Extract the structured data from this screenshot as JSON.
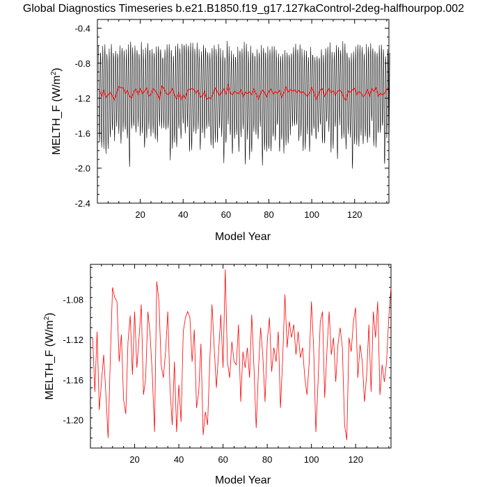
{
  "figure": {
    "title": "Global Diagnostics Timeseries b.e21.B1850.f19_g17.127kaControl-2deg-halfhourpop.002"
  },
  "chart_data": [
    {
      "type": "line",
      "xlabel": "Model Year",
      "ylabel": "MELTH_F (W/m",
      "ylabel_sup": "2",
      "ylabel_tail": ")",
      "xlim": [
        0,
        136
      ],
      "ylim": [
        -2.4,
        -0.3
      ],
      "xticks": [
        20,
        40,
        60,
        80,
        100,
        120
      ],
      "xtick_labels": [
        "20",
        "40",
        "60",
        "80",
        "100",
        "120"
      ],
      "yticks": [
        -2.4,
        -2.0,
        -1.6,
        -1.2,
        -0.8,
        -0.4
      ],
      "ytick_labels": [
        "-2.4",
        "-2.0",
        "-1.6",
        "-1.2",
        "-0.8",
        "-0.4"
      ],
      "grid": false,
      "series": [
        {
          "color": "#000000",
          "monthly_series": {
            "start_year": 1,
            "end_year": 136,
            "max_range": [
              -0.53,
              -0.75
            ],
            "min_range": [
              -1.45,
              -2.1
            ],
            "typical_max": -0.65,
            "typical_min": -1.65
          }
        },
        {
          "color": "#ff0000",
          "x": [
            1,
            2,
            3,
            4,
            5,
            6,
            7,
            8,
            9,
            10,
            11,
            12,
            13,
            14,
            15,
            16,
            17,
            18,
            19,
            20,
            21,
            22,
            23,
            24,
            25,
            26,
            27,
            28,
            29,
            30,
            31,
            32,
            33,
            34,
            35,
            36,
            37,
            38,
            39,
            40,
            41,
            42,
            43,
            44,
            45,
            46,
            47,
            48,
            49,
            50,
            51,
            52,
            53,
            54,
            55,
            56,
            57,
            58,
            59,
            60,
            61,
            62,
            63,
            64,
            65,
            66,
            67,
            68,
            69,
            70,
            71,
            72,
            73,
            74,
            75,
            76,
            77,
            78,
            79,
            80,
            81,
            82,
            83,
            84,
            85,
            86,
            87,
            88,
            89,
            90,
            91,
            92,
            93,
            94,
            95,
            96,
            97,
            98,
            99,
            100,
            101,
            102,
            103,
            104,
            105,
            106,
            107,
            108,
            109,
            110,
            111,
            112,
            113,
            114,
            115,
            116,
            117,
            118,
            119,
            120,
            121,
            122,
            123,
            124,
            125,
            126,
            127,
            128,
            129,
            130,
            131,
            132,
            133,
            134,
            135,
            136
          ],
          "y": [
            -1.118,
            -1.172,
            -1.112,
            -1.19,
            -1.162,
            -1.135,
            -1.175,
            -1.218,
            -1.138,
            -1.068,
            -1.078,
            -1.082,
            -1.142,
            -1.115,
            -1.18,
            -1.194,
            -1.122,
            -1.096,
            -1.155,
            -1.092,
            -1.148,
            -1.118,
            -1.085,
            -1.175,
            -1.158,
            -1.092,
            -1.115,
            -1.155,
            -1.212,
            -1.062,
            -1.082,
            -1.145,
            -1.158,
            -1.132,
            -1.092,
            -1.168,
            -1.205,
            -1.142,
            -1.212,
            -1.165,
            -1.202,
            -1.112,
            -1.098,
            -1.092,
            -1.098,
            -1.142,
            -1.11,
            -1.188,
            -1.172,
            -1.124,
            -1.215,
            -1.192,
            -1.205,
            -1.142,
            -1.085,
            -1.128,
            -1.168,
            -1.132,
            -1.095,
            -1.148,
            -1.05,
            -1.142,
            -1.158,
            -1.122,
            -1.142,
            -1.145,
            -1.105,
            -1.182,
            -1.132,
            -1.148,
            -1.128,
            -1.158,
            -1.095,
            -1.148,
            -1.208,
            -1.152,
            -1.108,
            -1.136,
            -1.182,
            -1.122,
            -1.098,
            -1.152,
            -1.128,
            -1.142,
            -1.112,
            -1.188,
            -1.138,
            -1.075,
            -1.128,
            -1.102,
            -1.118,
            -1.105,
            -1.135,
            -1.112,
            -1.138,
            -1.128,
            -1.158,
            -1.175,
            -1.142,
            -1.082,
            -1.128,
            -1.212,
            -1.162,
            -1.102,
            -1.092,
            -1.178,
            -1.132,
            -1.092,
            -1.135,
            -1.118,
            -1.162,
            -1.125,
            -1.108,
            -1.128,
            -1.205,
            -1.22,
            -1.118,
            -1.132,
            -1.102,
            -1.088,
            -1.158,
            -1.125,
            -1.142,
            -1.182,
            -1.155,
            -1.105,
            -1.172,
            -1.092,
            -1.118,
            -1.082,
            -1.175,
            -1.145,
            -1.162,
            -1.142,
            -1.098,
            -1.068
          ],
          "display_dx": 0
        }
      ]
    },
    {
      "type": "line",
      "xlabel": "Model Year",
      "ylabel": "MELTH_F (W/m",
      "ylabel_sup": "2",
      "ylabel_tail": ")",
      "xlim": [
        0,
        136
      ],
      "ylim": [
        -1.228,
        -1.045
      ],
      "xticks": [
        20,
        40,
        60,
        80,
        100,
        120
      ],
      "xtick_labels": [
        "20",
        "40",
        "60",
        "80",
        "100",
        "120"
      ],
      "yticks": [
        -1.2,
        -1.16,
        -1.12,
        -1.08
      ],
      "ytick_labels": [
        "-1.20",
        "-1.16",
        "-1.12",
        "-1.08"
      ],
      "grid": false,
      "series": [
        {
          "color": "#ff0000",
          "x": [
            1,
            2,
            3,
            4,
            5,
            6,
            7,
            8,
            9,
            10,
            11,
            12,
            13,
            14,
            15,
            16,
            17,
            18,
            19,
            20,
            21,
            22,
            23,
            24,
            25,
            26,
            27,
            28,
            29,
            30,
            31,
            32,
            33,
            34,
            35,
            36,
            37,
            38,
            39,
            40,
            41,
            42,
            43,
            44,
            45,
            46,
            47,
            48,
            49,
            50,
            51,
            52,
            53,
            54,
            55,
            56,
            57,
            58,
            59,
            60,
            61,
            62,
            63,
            64,
            65,
            66,
            67,
            68,
            69,
            70,
            71,
            72,
            73,
            74,
            75,
            76,
            77,
            78,
            79,
            80,
            81,
            82,
            83,
            84,
            85,
            86,
            87,
            88,
            89,
            90,
            91,
            92,
            93,
            94,
            95,
            96,
            97,
            98,
            99,
            100,
            101,
            102,
            103,
            104,
            105,
            106,
            107,
            108,
            109,
            110,
            111,
            112,
            113,
            114,
            115,
            116,
            117,
            118,
            119,
            120,
            121,
            122,
            123,
            124,
            125,
            126,
            127,
            128,
            129,
            130,
            131,
            132,
            133,
            134,
            135,
            136
          ],
          "y": [
            -1.118,
            -1.172,
            -1.112,
            -1.19,
            -1.162,
            -1.135,
            -1.175,
            -1.218,
            -1.138,
            -1.068,
            -1.078,
            -1.082,
            -1.142,
            -1.115,
            -1.18,
            -1.194,
            -1.122,
            -1.096,
            -1.155,
            -1.092,
            -1.148,
            -1.118,
            -1.085,
            -1.175,
            -1.158,
            -1.092,
            -1.115,
            -1.155,
            -1.212,
            -1.062,
            -1.082,
            -1.145,
            -1.158,
            -1.132,
            -1.092,
            -1.168,
            -1.205,
            -1.142,
            -1.212,
            -1.165,
            -1.202,
            -1.112,
            -1.098,
            -1.092,
            -1.098,
            -1.142,
            -1.11,
            -1.188,
            -1.172,
            -1.124,
            -1.215,
            -1.192,
            -1.205,
            -1.142,
            -1.085,
            -1.128,
            -1.168,
            -1.132,
            -1.095,
            -1.148,
            -1.05,
            -1.142,
            -1.158,
            -1.122,
            -1.142,
            -1.145,
            -1.105,
            -1.182,
            -1.132,
            -1.148,
            -1.128,
            -1.158,
            -1.095,
            -1.148,
            -1.208,
            -1.152,
            -1.108,
            -1.136,
            -1.182,
            -1.122,
            -1.098,
            -1.152,
            -1.128,
            -1.142,
            -1.112,
            -1.188,
            -1.138,
            -1.075,
            -1.128,
            -1.102,
            -1.118,
            -1.105,
            -1.135,
            -1.112,
            -1.138,
            -1.128,
            -1.158,
            -1.175,
            -1.142,
            -1.082,
            -1.128,
            -1.212,
            -1.162,
            -1.102,
            -1.092,
            -1.178,
            -1.132,
            -1.092,
            -1.135,
            -1.118,
            -1.162,
            -1.125,
            -1.108,
            -1.128,
            -1.205,
            -1.22,
            -1.118,
            -1.132,
            -1.102,
            -1.088,
            -1.158,
            -1.125,
            -1.142,
            -1.182,
            -1.155,
            -1.105,
            -1.172,
            -1.092,
            -1.118,
            -1.082,
            -1.175,
            -1.145,
            -1.162,
            -1.142,
            -1.098,
            -1.068
          ],
          "display_dx": 0
        }
      ]
    }
  ]
}
